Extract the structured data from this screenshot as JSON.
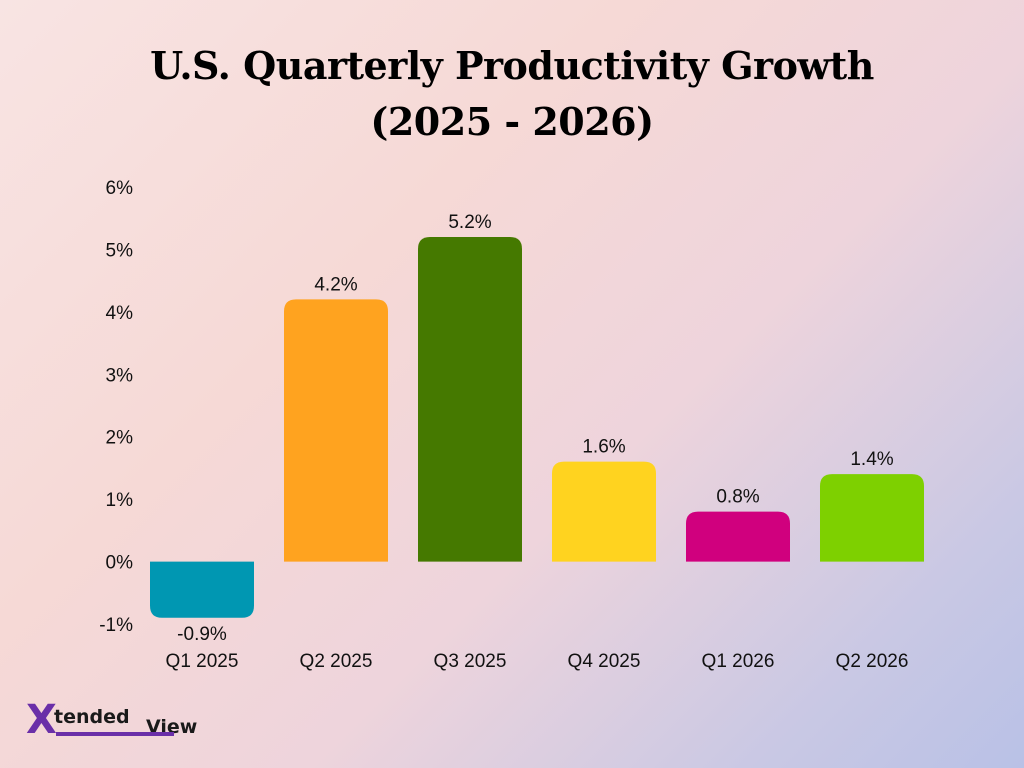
{
  "chart_data": {
    "type": "bar",
    "title_line1": "U.S. Quarterly Productivity Growth",
    "title_line2": "(2025 - 2026)",
    "categories": [
      "Q1 2025",
      "Q2 2025",
      "Q3 2025",
      "Q4 2025",
      "Q1 2026",
      "Q2 2026"
    ],
    "values": [
      -0.9,
      4.2,
      5.2,
      1.6,
      0.8,
      1.4
    ],
    "data_labels": [
      "-0.9%",
      "4.2%",
      "5.2%",
      "1.6%",
      "0.8%",
      "1.4%"
    ],
    "colors": [
      "#0097b2",
      "#ffa31f",
      "#457900",
      "#ffd31f",
      "#d0007e",
      "#7ed000"
    ],
    "yticks": [
      -1,
      0,
      1,
      2,
      3,
      4,
      5,
      6
    ],
    "ytick_labels": [
      "-1%",
      "0%",
      "1%",
      "2%",
      "3%",
      "4%",
      "5%",
      "6%"
    ],
    "ylim": [
      -1,
      6
    ],
    "grid": false
  },
  "logo": {
    "x": "X",
    "tended": "tended",
    "view": "View"
  }
}
